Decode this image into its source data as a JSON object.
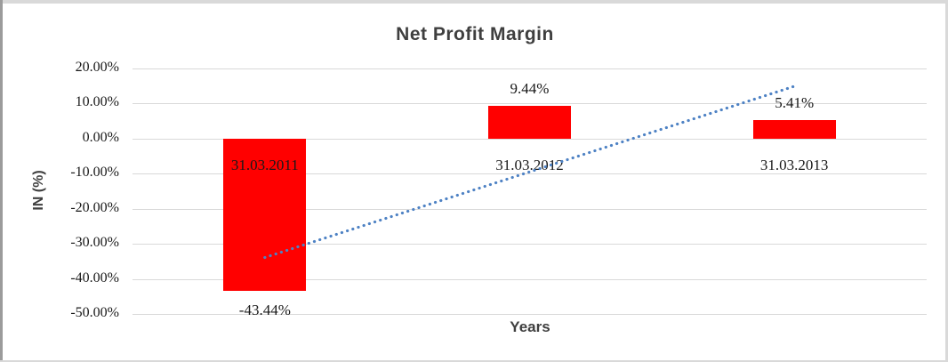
{
  "frame": {
    "background": "#ffffff",
    "edge_color": "#d9d9d9",
    "left_edge_color": "#9b9b9b"
  },
  "chart_data": {
    "type": "bar",
    "title": "Net Profit Margin",
    "xlabel": "Years",
    "ylabel": "IN (%)",
    "categories": [
      "31.03.2011",
      "31.03.2012",
      "31.03.2013"
    ],
    "values": [
      -43.44,
      9.44,
      5.41
    ],
    "data_labels": [
      "-43.44%",
      "9.44%",
      "5.41%"
    ],
    "ylim": [
      -50,
      20
    ],
    "ytick_values": [
      20,
      10,
      0,
      -10,
      -20,
      -30,
      -40,
      -50
    ],
    "ytick_labels": [
      "20.00%",
      "10.00%",
      "0.00%",
      "-10.00%",
      "-20.00%",
      "-30.00%",
      "-40.00%",
      "-50.00%"
    ],
    "grid": true,
    "legend": "none",
    "bar_color": "#ff0000",
    "label_color": "#191919",
    "title_color": "#3f3f3f",
    "gridline_color": "#d9d9d9",
    "trendline": {
      "type": "linear",
      "style": "dotted",
      "color": "#4e82c4",
      "start_value_pct": -33.9,
      "end_value_pct": 14.9
    }
  }
}
